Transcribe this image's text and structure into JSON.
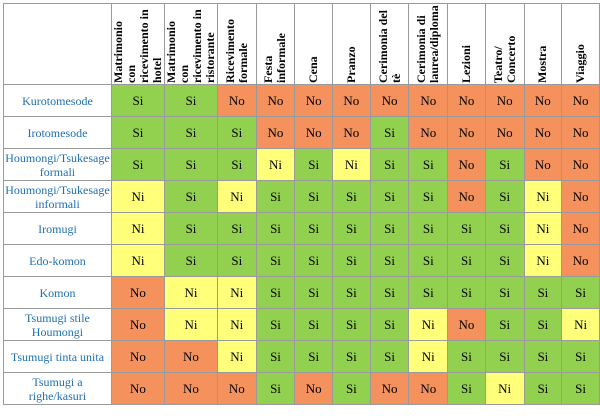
{
  "colors": {
    "si": "#92d050",
    "no": "#f4915c",
    "ni": "#ffff7a",
    "kimono_label": "#1f6fb3"
  },
  "columns": [
    "Matrimonio con ricevimento in hotel",
    "Matrimonio con ricevimento in ristorante",
    "Ricevimento formale",
    "Festa informale",
    "Cena",
    "Pranzo",
    "Cerimonia del tè",
    "Cerimonia di laurea/diploma",
    "Lezioni",
    "Teatro/ Concerto",
    "Mostra",
    "Viaggio"
  ],
  "rows": [
    {
      "label": "Kurotomesode",
      "values": [
        "Si",
        "Si",
        "No",
        "No",
        "No",
        "No",
        "No",
        "No",
        "No",
        "No",
        "No",
        "No"
      ]
    },
    {
      "label": "Irotomesode",
      "values": [
        "Si",
        "Si",
        "Si",
        "No",
        "No",
        "No",
        "Si",
        "No",
        "No",
        "No",
        "No",
        "No"
      ]
    },
    {
      "label": "Houmongi/Tsukesage formali",
      "values": [
        "Si",
        "Si",
        "Si",
        "Ni",
        "Si",
        "Ni",
        "Si",
        "Si",
        "No",
        "Si",
        "No",
        "No"
      ]
    },
    {
      "label": "Houmongi/Tsukesage informali",
      "values": [
        "Ni",
        "Si",
        "Ni",
        "Si",
        "Si",
        "Si",
        "Si",
        "Si",
        "No",
        "Si",
        "Ni",
        "No"
      ]
    },
    {
      "label": "Iromugi",
      "values": [
        "Ni",
        "Si",
        "Si",
        "Si",
        "Si",
        "Si",
        "Si",
        "Si",
        "Si",
        "Si",
        "Ni",
        "No"
      ]
    },
    {
      "label": "Edo-komon",
      "values": [
        "Ni",
        "Si",
        "Si",
        "Si",
        "Si",
        "Si",
        "Si",
        "Si",
        "Si",
        "Si",
        "Ni",
        "No"
      ]
    },
    {
      "label": "Komon",
      "values": [
        "No",
        "Ni",
        "Ni",
        "Si",
        "Si",
        "Si",
        "Si",
        "Si",
        "Si",
        "Si",
        "Si",
        "Si"
      ]
    },
    {
      "label": "Tsumugi stile Houmongi",
      "values": [
        "No",
        "Ni",
        "Ni",
        "Si",
        "Si",
        "Si",
        "Si",
        "Ni",
        "No",
        "Si",
        "Si",
        "Ni"
      ]
    },
    {
      "label": "Tsumugi tinta unita",
      "values": [
        "No",
        "No",
        "Ni",
        "Si",
        "Si",
        "Si",
        "Si",
        "Ni",
        "Si",
        "Si",
        "Si",
        "Si"
      ]
    },
    {
      "label": "Tsumugi a righe/kasuri",
      "values": [
        "No",
        "No",
        "No",
        "Si",
        "No",
        "Si",
        "No",
        "No",
        "Si",
        "Ni",
        "Si",
        "Si"
      ]
    }
  ]
}
